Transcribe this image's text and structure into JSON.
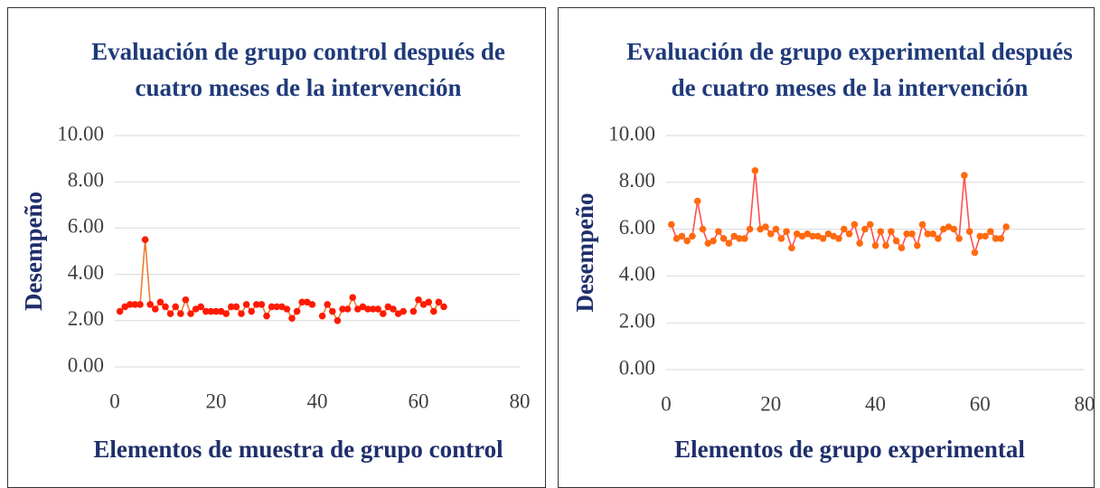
{
  "chart_data": [
    {
      "type": "line",
      "title": [
        "Evaluación de grupo control después de",
        "cuatro meses de la intervención"
      ],
      "x_label": "Elementos de muestra de grupo control",
      "y_label": "Desempeño",
      "x": [
        1,
        2,
        3,
        4,
        5,
        6,
        7,
        8,
        9,
        10,
        11,
        12,
        13,
        14,
        15,
        16,
        17,
        18,
        19,
        20,
        21,
        22,
        23,
        24,
        25,
        26,
        27,
        28,
        29,
        30,
        31,
        32,
        33,
        34,
        35,
        36,
        37,
        38,
        39,
        40,
        41,
        42,
        43,
        44,
        45,
        46,
        47,
        48,
        49,
        50,
        51,
        52,
        53,
        54,
        55,
        56,
        57,
        58,
        59,
        60,
        61,
        62,
        63,
        64,
        65
      ],
      "values": [
        2.4,
        2.6,
        2.7,
        2.7,
        2.7,
        5.5,
        2.7,
        2.5,
        2.8,
        2.6,
        2.3,
        2.6,
        2.3,
        2.9,
        2.3,
        2.5,
        2.6,
        2.4,
        2.4,
        2.4,
        2.4,
        2.3,
        2.6,
        2.6,
        2.3,
        2.7,
        2.4,
        2.7,
        2.7,
        2.2,
        2.6,
        2.6,
        2.6,
        2.5,
        2.1,
        2.4,
        2.8,
        2.8,
        2.7,
        null,
        2.2,
        2.7,
        2.4,
        2.0,
        2.5,
        2.5,
        3.0,
        2.5,
        2.6,
        2.5,
        2.5,
        2.5,
        2.3,
        2.6,
        2.5,
        2.3,
        2.4,
        null,
        2.4,
        2.9,
        2.7,
        2.8,
        2.4,
        2.8,
        2.6
      ],
      "color": "#ed7d31",
      "marker_color": "#ff1a00",
      "xlim": [
        0,
        80
      ],
      "xticks": [
        0,
        20,
        40,
        60,
        80
      ],
      "ylim": [
        0,
        10
      ],
      "yticks": [
        {
          "value": 0,
          "label": "0.00"
        },
        {
          "value": 2,
          "label": "2.00"
        },
        {
          "value": 4,
          "label": "4.00"
        },
        {
          "value": 6,
          "label": "6.00"
        },
        {
          "value": 8,
          "label": "8.00"
        },
        {
          "value": 10,
          "label": "10.00"
        }
      ],
      "grid": true
    },
    {
      "type": "line",
      "title": [
        "Evaluación de grupo experimental después",
        "de cuatro meses de la intervención"
      ],
      "x_label": "Elementos de grupo experimental",
      "y_label": "Desempeño",
      "x": [
        1,
        2,
        3,
        4,
        5,
        6,
        7,
        8,
        9,
        10,
        11,
        12,
        13,
        14,
        15,
        16,
        17,
        18,
        19,
        20,
        21,
        22,
        23,
        24,
        25,
        26,
        27,
        28,
        29,
        30,
        31,
        32,
        33,
        34,
        35,
        36,
        37,
        38,
        39,
        40,
        41,
        42,
        43,
        44,
        45,
        46,
        47,
        48,
        49,
        50,
        51,
        52,
        53,
        54,
        55,
        56,
        57,
        58,
        59,
        60,
        61,
        62,
        63,
        64,
        65
      ],
      "values": [
        6.2,
        5.6,
        5.7,
        5.5,
        5.7,
        7.2,
        6.0,
        5.4,
        5.5,
        5.9,
        5.6,
        5.4,
        5.7,
        5.6,
        5.6,
        6.0,
        8.5,
        6.0,
        6.1,
        5.8,
        6.0,
        5.6,
        5.9,
        5.2,
        5.8,
        5.7,
        5.8,
        5.7,
        5.7,
        5.6,
        5.8,
        5.7,
        5.6,
        6.0,
        5.8,
        6.2,
        5.4,
        6.0,
        6.2,
        5.3,
        5.9,
        5.3,
        5.9,
        5.5,
        5.2,
        5.8,
        5.8,
        5.3,
        6.2,
        5.8,
        5.8,
        5.6,
        6.0,
        6.1,
        6.0,
        5.6,
        8.3,
        5.9,
        5.0,
        5.7,
        5.7,
        5.9,
        5.6,
        5.6,
        6.1
      ],
      "color": "#ff5050",
      "marker_color": "#ff6a10",
      "xlim": [
        0,
        80
      ],
      "xticks": [
        0,
        20,
        40,
        60,
        80
      ],
      "ylim": [
        0,
        10
      ],
      "yticks": [
        {
          "value": 0,
          "label": "0.00"
        },
        {
          "value": 2,
          "label": "2.00"
        },
        {
          "value": 4,
          "label": "4.00"
        },
        {
          "value": 6,
          "label": "6.00"
        },
        {
          "value": 8,
          "label": "8.00"
        },
        {
          "value": 10,
          "label": "10.00"
        }
      ],
      "grid": true
    }
  ]
}
